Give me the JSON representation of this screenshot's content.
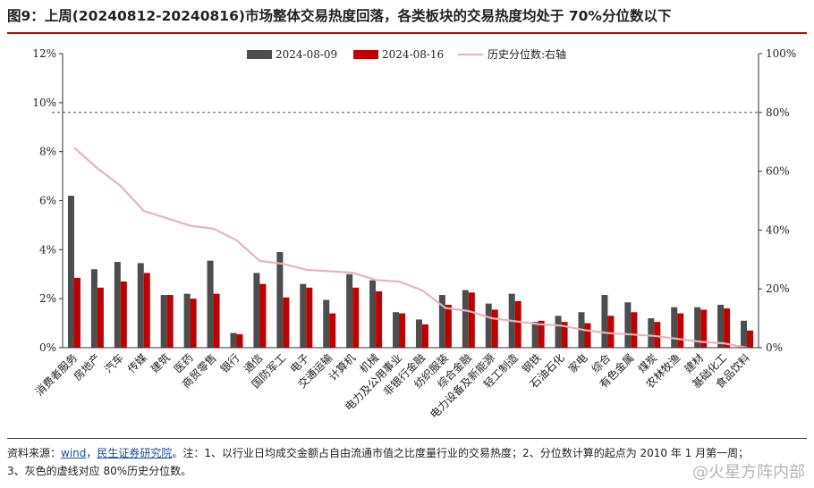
{
  "title": "图9：上周(20240812-20240816)市场整体交易热度回落，各类板块的交易热度均处于 70%分位数以下",
  "footnote": {
    "prefix": "资料来源：",
    "wind": "wind",
    "comma": "，",
    "ms": "民生证券研究院",
    "line1_rest": "。注：1、以行业日均成交金额占自由流通市值之比度量行业的交易热度；2、分位数计算的起点为 2010 年 1 月第一周；",
    "line2": "3、灰色的虚线对应 80%历史分位数。"
  },
  "watermark": "@火星方阵内部",
  "colors": {
    "series1": "#4d4d4d",
    "series2": "#c00000",
    "line": "#e8b4bc",
    "ref": "#555555"
  },
  "chart_data": {
    "type": "bar",
    "categories": [
      "消费者服务",
      "房地产",
      "汽车",
      "传媒",
      "建筑",
      "医药",
      "商贸零售",
      "银行",
      "通信",
      "国防军工",
      "电子",
      "交通运输",
      "计算机",
      "机械",
      "电力及公用事业",
      "非银行金融",
      "纺织服装",
      "综合金融",
      "电力设备及新能源",
      "轻工制造",
      "钢铁",
      "石油石化",
      "家电",
      "综合",
      "有色金属",
      "煤炭",
      "农林牧渔",
      "建材",
      "基础化工",
      "食品饮料"
    ],
    "series": [
      {
        "name": "2024-08-09",
        "axis": "left",
        "values": [
          6.2,
          3.2,
          3.5,
          3.45,
          2.15,
          2.2,
          3.55,
          0.6,
          3.05,
          3.9,
          2.6,
          1.95,
          3.0,
          2.75,
          1.45,
          1.15,
          2.15,
          2.35,
          1.8,
          2.2,
          1.05,
          1.3,
          1.45,
          2.15,
          1.85,
          1.2,
          1.65,
          1.65,
          1.75,
          1.1
        ]
      },
      {
        "name": "2024-08-16",
        "axis": "left",
        "values": [
          2.85,
          2.45,
          2.7,
          3.05,
          2.15,
          2.0,
          2.2,
          0.55,
          2.6,
          2.05,
          2.45,
          1.4,
          2.45,
          2.3,
          1.4,
          0.95,
          1.75,
          2.25,
          1.55,
          1.9,
          1.1,
          1.05,
          1.0,
          1.3,
          1.45,
          1.05,
          1.4,
          1.55,
          1.6,
          0.7
        ]
      },
      {
        "name": "历史分位数:右轴",
        "axis": "right",
        "type": "line",
        "values": [
          68,
          61,
          55,
          46.5,
          44,
          41.5,
          40.5,
          36.5,
          29.5,
          28.5,
          26.5,
          26,
          25.5,
          23,
          22.5,
          19.5,
          13.5,
          12.5,
          10,
          9,
          8,
          7.5,
          6,
          5,
          4.5,
          4,
          3,
          2,
          1.5,
          0
        ]
      }
    ],
    "left_axis": {
      "ticks": [
        "0%",
        "2%",
        "4%",
        "6%",
        "8%",
        "10%",
        "12%"
      ],
      "ylim": [
        0,
        12
      ]
    },
    "right_axis": {
      "ticks": [
        "0%",
        "20%",
        "40%",
        "60%",
        "80%",
        "100%"
      ],
      "ylim": [
        0,
        100
      ]
    },
    "reference_line": {
      "axis": "right",
      "value": 80,
      "style": "dashed"
    },
    "legend_position": "top-center"
  }
}
